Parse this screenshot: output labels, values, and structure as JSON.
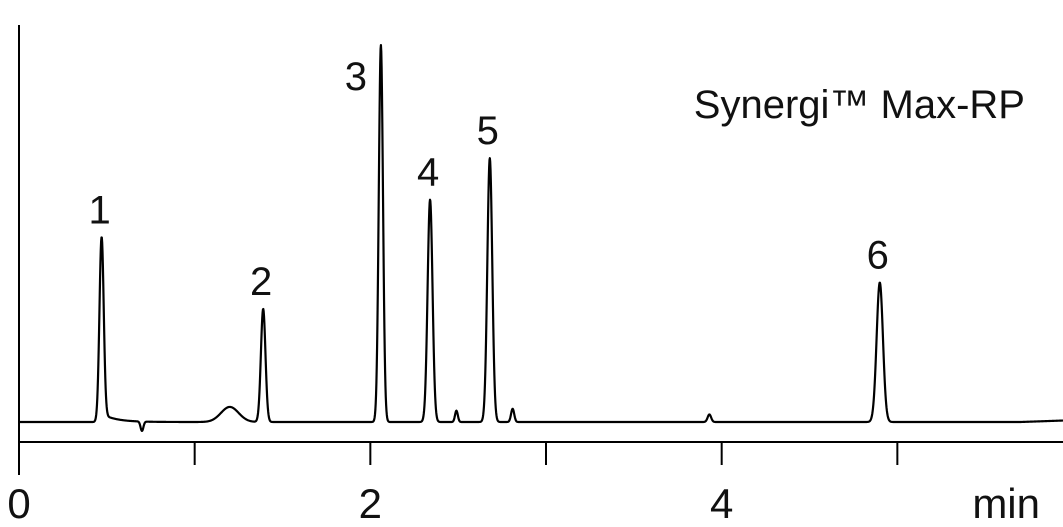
{
  "chart_data": {
    "type": "line",
    "title": "Synergi™ Max-RP",
    "xlabel": "min",
    "ylabel": "",
    "xlim": [
      0,
      6.0
    ],
    "ylim": [
      0,
      100
    ],
    "grid": false,
    "x_ticks": [
      0,
      1,
      2,
      3,
      4,
      5
    ],
    "x_tick_labels": [
      "0",
      "",
      "2",
      "",
      "4",
      ""
    ],
    "peaks": [
      {
        "label": "1",
        "rt": 0.47,
        "height": 49,
        "width": 0.012,
        "tail": 0.08
      },
      {
        "label": "2",
        "rt": 1.39,
        "height": 30,
        "width": 0.013,
        "tail": 0
      },
      {
        "label": "3",
        "rt": 2.06,
        "height": 100,
        "width": 0.012,
        "tail": 0
      },
      {
        "label": "4",
        "rt": 2.34,
        "height": 59,
        "width": 0.014,
        "tail": 0
      },
      {
        "label": "5",
        "rt": 2.68,
        "height": 70,
        "width": 0.014,
        "tail": 0
      },
      {
        "label": "6",
        "rt": 4.9,
        "height": 37,
        "width": 0.018,
        "tail": 0
      }
    ],
    "minor_features": [
      {
        "x": 1.2,
        "height": 4.0,
        "width": 0.05
      },
      {
        "x": 2.49,
        "height": 3.0,
        "width": 0.008
      },
      {
        "x": 2.81,
        "height": 3.5,
        "width": 0.009
      },
      {
        "x": 3.93,
        "height": 2.0,
        "width": 0.01
      },
      {
        "x": 0.7,
        "height": -2.5,
        "width": 0.008
      }
    ]
  }
}
